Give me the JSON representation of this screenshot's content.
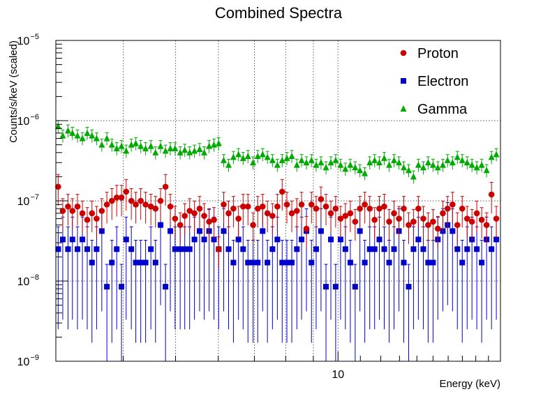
{
  "chart_data": {
    "type": "scatter",
    "title": "Combined Spectra",
    "xlabel": "Energy (keV)",
    "ylabel": "Counts/s/keV (scaled)",
    "xscale": "log",
    "yscale": "log",
    "xlim": [
      3,
      20
    ],
    "ylim": [
      1e-09,
      1e-05
    ],
    "x_tick_labels": [
      {
        "value": 10,
        "label": "10"
      }
    ],
    "x_major_grid": [
      4,
      5,
      6,
      7,
      8,
      9,
      10
    ],
    "y_ticks": [
      {
        "value": 1e-09,
        "base": "10",
        "exp": "−9"
      },
      {
        "value": 1e-08,
        "base": "10",
        "exp": "−8"
      },
      {
        "value": 1e-07,
        "base": "10",
        "exp": "−7"
      },
      {
        "value": 1e-06,
        "base": "10",
        "exp": "−6"
      },
      {
        "value": 1e-05,
        "base": "10",
        "exp": "−5"
      }
    ],
    "grid": true,
    "legend_position": "top-right",
    "series": [
      {
        "name": "Proton",
        "color": "#cc0000",
        "marker": "circle",
        "x": [
          3.03,
          3.09,
          3.16,
          3.22,
          3.29,
          3.36,
          3.43,
          3.5,
          3.57,
          3.65,
          3.73,
          3.81,
          3.89,
          3.97,
          4.05,
          4.14,
          4.22,
          4.31,
          4.4,
          4.5,
          4.59,
          4.69,
          4.79,
          4.89,
          4.99,
          5.1,
          5.2,
          5.31,
          5.42,
          5.54,
          5.65,
          5.77,
          5.89,
          6.01,
          6.14,
          6.27,
          6.4,
          6.54,
          6.67,
          6.81,
          6.96,
          7.1,
          7.25,
          7.4,
          7.56,
          7.72,
          7.88,
          8.04,
          8.21,
          8.39,
          8.56,
          8.74,
          8.93,
          9.11,
          9.3,
          9.5,
          9.7,
          9.9,
          10.11,
          10.32,
          10.54,
          10.76,
          10.98,
          11.21,
          11.45,
          11.69,
          11.93,
          12.18,
          12.44,
          12.7,
          12.97,
          13.24,
          13.52,
          13.8,
          14.09,
          14.39,
          14.69,
          15.0,
          15.31,
          15.64,
          15.96,
          16.3,
          16.64,
          16.99,
          17.35,
          17.71,
          18.08,
          18.46,
          18.85,
          19.25,
          19.65
        ],
        "y": [
          1.5e-07,
          7.5e-08,
          8.5e-08,
          7.5e-08,
          8.5e-08,
          7e-08,
          5.8e-08,
          7e-08,
          6e-08,
          7.5e-08,
          9e-08,
          1e-07,
          1.1e-07,
          1.1e-07,
          1.3e-07,
          1e-07,
          9e-08,
          1e-07,
          9e-08,
          8.5e-08,
          8e-08,
          1e-07,
          1.5e-07,
          8.5e-08,
          6e-08,
          5e-08,
          6.5e-08,
          7.5e-08,
          7e-08,
          8e-08,
          6.5e-08,
          5.5e-08,
          5.8e-08,
          2.5e-08,
          9e-08,
          7e-08,
          8e-08,
          6e-08,
          8.5e-08,
          8.5e-08,
          5e-08,
          8e-08,
          8.5e-08,
          7e-08,
          6.5e-08,
          8.5e-08,
          1.3e-07,
          9e-08,
          7e-08,
          7.5e-08,
          9e-08,
          4.5e-08,
          9e-08,
          8e-08,
          1.05e-07,
          8.5e-08,
          7e-08,
          8e-08,
          6e-08,
          6.5e-08,
          7e-08,
          5.5e-08,
          8e-08,
          9e-08,
          8e-08,
          5.8e-08,
          8e-08,
          8.5e-08,
          5.5e-08,
          7e-08,
          6e-08,
          8e-08,
          5e-08,
          5.5e-08,
          8e-08,
          6e-08,
          5e-08,
          5.5e-08,
          4.5e-08,
          7e-08,
          8e-08,
          9e-08,
          5e-08,
          8e-08,
          6e-08,
          5.5e-08,
          7e-08,
          5.8e-08,
          5e-08,
          1.2e-07,
          6e-08
        ]
      },
      {
        "name": "Electron",
        "color": "#0000cc",
        "marker": "square",
        "x": [
          3.03,
          3.09,
          3.16,
          3.22,
          3.29,
          3.36,
          3.43,
          3.5,
          3.57,
          3.65,
          3.73,
          3.81,
          3.89,
          3.97,
          4.05,
          4.14,
          4.22,
          4.31,
          4.4,
          4.5,
          4.59,
          4.69,
          4.79,
          4.89,
          4.99,
          5.1,
          5.2,
          5.31,
          5.42,
          5.54,
          5.65,
          5.77,
          5.89,
          6.01,
          6.14,
          6.27,
          6.4,
          6.54,
          6.67,
          6.81,
          6.96,
          7.1,
          7.25,
          7.4,
          7.56,
          7.72,
          7.88,
          8.04,
          8.21,
          8.39,
          8.56,
          8.74,
          8.93,
          9.11,
          9.3,
          9.5,
          9.7,
          9.9,
          10.11,
          10.32,
          10.54,
          10.76,
          10.98,
          11.21,
          11.45,
          11.69,
          11.93,
          12.18,
          12.44,
          12.7,
          12.97,
          13.24,
          13.52,
          13.8,
          14.09,
          14.39,
          14.69,
          15.0,
          15.31,
          15.64,
          15.96,
          16.3,
          16.64,
          16.99,
          17.35,
          17.71,
          18.08,
          18.46,
          18.85,
          19.25,
          19.65
        ],
        "y": [
          2.5e-08,
          3.3e-08,
          2.5e-08,
          3.3e-08,
          2.5e-08,
          3.3e-08,
          2.5e-08,
          1.7e-08,
          2.5e-08,
          4.2e-08,
          8.5e-09,
          1.7e-08,
          2.5e-08,
          8.5e-09,
          3.3e-08,
          2.5e-08,
          1.7e-08,
          1.7e-08,
          1.7e-08,
          2.5e-08,
          1.7e-08,
          5e-08,
          8.5e-09,
          4.2e-08,
          2.5e-08,
          2.5e-08,
          2.5e-08,
          2.5e-08,
          3.3e-08,
          4.2e-08,
          3.3e-08,
          4.2e-08,
          3.3e-08,
          2.5e-08,
          4.2e-08,
          2.5e-08,
          1.7e-08,
          3.3e-08,
          2.5e-08,
          1.7e-08,
          1.7e-08,
          1.7e-08,
          4.2e-08,
          1.7e-08,
          2.5e-08,
          3.3e-08,
          1.7e-08,
          1.7e-08,
          1.7e-08,
          2.5e-08,
          3.3e-08,
          4.2e-08,
          1.7e-08,
          2.5e-08,
          4.2e-08,
          8.5e-09,
          3.3e-08,
          8.5e-09,
          3.3e-08,
          2.5e-08,
          1.7e-08,
          8.5e-09,
          4.2e-08,
          1.7e-08,
          2.5e-08,
          2.5e-08,
          3.3e-08,
          2.5e-08,
          1.7e-08,
          2.5e-08,
          4.2e-08,
          1.7e-08,
          8.5e-09,
          2.5e-08,
          3.3e-08,
          2.5e-08,
          1.7e-08,
          1.7e-08,
          3.3e-08,
          4.2e-08,
          5e-08,
          4.2e-08,
          2.5e-08,
          1.7e-08,
          2.5e-08,
          3.3e-08,
          2.5e-08,
          1.7e-08,
          3.3e-08,
          2.5e-08,
          3.3e-08
        ]
      },
      {
        "name": "Gamma",
        "color": "#00aa00",
        "marker": "triangle",
        "x": [
          3.03,
          3.09,
          3.16,
          3.22,
          3.29,
          3.36,
          3.43,
          3.5,
          3.57,
          3.65,
          3.73,
          3.81,
          3.89,
          3.97,
          4.05,
          4.14,
          4.22,
          4.31,
          4.4,
          4.5,
          4.59,
          4.69,
          4.79,
          4.89,
          4.99,
          5.1,
          5.2,
          5.31,
          5.42,
          5.54,
          5.65,
          5.77,
          5.89,
          6.01,
          6.14,
          6.27,
          6.4,
          6.54,
          6.67,
          6.81,
          6.96,
          7.1,
          7.25,
          7.4,
          7.56,
          7.72,
          7.88,
          8.04,
          8.21,
          8.39,
          8.56,
          8.74,
          8.93,
          9.11,
          9.3,
          9.5,
          9.7,
          9.9,
          10.11,
          10.32,
          10.54,
          10.76,
          10.98,
          11.21,
          11.45,
          11.69,
          11.93,
          12.18,
          12.44,
          12.7,
          12.97,
          13.24,
          13.52,
          13.8,
          14.09,
          14.39,
          14.69,
          15.0,
          15.31,
          15.64,
          15.96,
          16.3,
          16.64,
          16.99,
          17.35,
          17.71,
          18.08,
          18.46,
          18.85,
          19.25,
          19.65
        ],
        "y": [
          8.5e-07,
          6.5e-07,
          7.5e-07,
          7e-07,
          6.5e-07,
          6e-07,
          7e-07,
          6.5e-07,
          6e-07,
          5e-07,
          6e-07,
          5e-07,
          4.5e-07,
          4.8e-07,
          4.2e-07,
          5e-07,
          5.2e-07,
          4.8e-07,
          4.5e-07,
          4.8e-07,
          4e-07,
          4.8e-07,
          4.2e-07,
          4.5e-07,
          4.5e-07,
          4e-07,
          4.3e-07,
          4e-07,
          4.2e-07,
          4.4e-07,
          4e-07,
          4.8e-07,
          5e-07,
          5.2e-07,
          3.2e-07,
          2.8e-07,
          3.5e-07,
          3.8e-07,
          3.4e-07,
          3.6e-07,
          3e-07,
          3.6e-07,
          3.8e-07,
          3.5e-07,
          3.2e-07,
          2.8e-07,
          3.2e-07,
          3.4e-07,
          3.6e-07,
          2.8e-07,
          3.2e-07,
          3e-07,
          3.2e-07,
          2.8e-07,
          3e-07,
          2.6e-07,
          3e-07,
          3.2e-07,
          2.8e-07,
          2.5e-07,
          2.8e-07,
          2.6e-07,
          2.4e-07,
          2.2e-07,
          3e-07,
          3.2e-07,
          3e-07,
          3.4e-07,
          2.8e-07,
          3.2e-07,
          3e-07,
          2.6e-07,
          2.4e-07,
          2e-07,
          2.8e-07,
          2.6e-07,
          3e-07,
          2.8e-07,
          2.6e-07,
          2.8e-07,
          3.2e-07,
          3e-07,
          3.5e-07,
          3.2e-07,
          3e-07,
          2.8e-07,
          2.6e-07,
          2.8e-07,
          2.4e-07,
          3.5e-07,
          3.8e-07
        ]
      }
    ]
  }
}
